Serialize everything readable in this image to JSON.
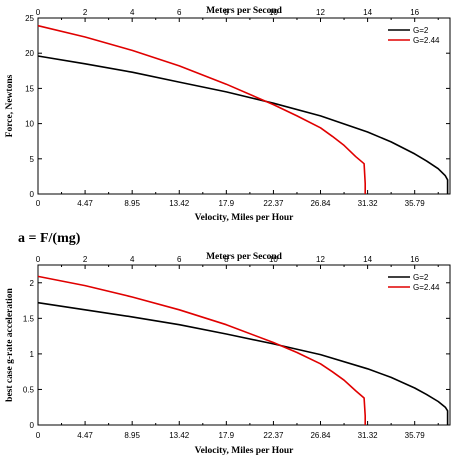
{
  "formula": "a = F/(mg)",
  "chart_data": [
    {
      "type": "line",
      "title": "",
      "x2label": "Meters per Second",
      "xlabel": "Velocity, Miles per Hour",
      "ylabel": "Force, Newtons",
      "xlim": [
        0,
        17.5
      ],
      "ylim": [
        0,
        25
      ],
      "x_ticks_bottom": [
        "0",
        "4.47",
        "8.95",
        "13.42",
        "17.9",
        "22.37",
        "26.84",
        "31.32",
        "35.79"
      ],
      "x_ticks_top": [
        "0",
        "2",
        "4",
        "6",
        "8",
        "10",
        "12",
        "14",
        "16"
      ],
      "y_ticks": [
        "0",
        "5",
        "10",
        "15",
        "20",
        "25"
      ],
      "y_tick_values": [
        0,
        5,
        10,
        15,
        20,
        25
      ],
      "legend_position": "top-right",
      "grid": false,
      "series": [
        {
          "name": "G=2",
          "color": "#000000",
          "x": [
            0,
            2,
            4,
            6,
            8,
            10,
            12,
            14,
            15,
            16,
            16.5,
            17,
            17.3,
            17.4,
            17.4
          ],
          "y": [
            19.6,
            18.5,
            17.3,
            15.9,
            14.5,
            12.9,
            11.1,
            8.8,
            7.4,
            5.7,
            4.7,
            3.6,
            2.6,
            2.0,
            0
          ]
        },
        {
          "name": "G=2.44",
          "color": "#e00000",
          "x": [
            0,
            2,
            4,
            6,
            8,
            10,
            11,
            12,
            12.5,
            13,
            13.5,
            13.85,
            13.9,
            13.9
          ],
          "y": [
            23.9,
            22.3,
            20.4,
            18.2,
            15.6,
            12.7,
            11.1,
            9.4,
            8.2,
            6.9,
            5.3,
            4.3,
            1.5,
            0
          ]
        }
      ]
    },
    {
      "type": "line",
      "title": "",
      "x2label": "Meters per Second",
      "xlabel": "Velocity, Miles per Hour",
      "ylabel": "best case g-rate acceleration",
      "xlim": [
        0,
        17.5
      ],
      "ylim": [
        0,
        2.25
      ],
      "x_ticks_bottom": [
        "0",
        "4.47",
        "8.95",
        "13.42",
        "17.9",
        "22.37",
        "26.84",
        "31.32",
        "35.79"
      ],
      "x_ticks_top": [
        "0",
        "2",
        "4",
        "6",
        "8",
        "10",
        "12",
        "14",
        "16"
      ],
      "y_ticks": [
        "0",
        "0.5",
        "1",
        "1.5",
        "2"
      ],
      "y_tick_values": [
        0,
        0.5,
        1,
        1.5,
        2
      ],
      "legend_position": "top-right",
      "grid": false,
      "series": [
        {
          "name": "G=2",
          "color": "#000000",
          "x": [
            0,
            2,
            4,
            6,
            8,
            10,
            12,
            14,
            15,
            16,
            16.5,
            17,
            17.3,
            17.4,
            17.4
          ],
          "y": [
            1.72,
            1.62,
            1.52,
            1.41,
            1.28,
            1.14,
            0.99,
            0.79,
            0.67,
            0.52,
            0.43,
            0.33,
            0.25,
            0.2,
            0
          ]
        },
        {
          "name": "G=2.44",
          "color": "#e00000",
          "x": [
            0,
            2,
            4,
            6,
            8,
            10,
            11,
            12,
            12.5,
            13,
            13.5,
            13.85,
            13.9,
            13.9
          ],
          "y": [
            2.09,
            1.96,
            1.8,
            1.62,
            1.41,
            1.16,
            1.02,
            0.86,
            0.75,
            0.63,
            0.48,
            0.38,
            0.13,
            0
          ]
        }
      ]
    }
  ]
}
